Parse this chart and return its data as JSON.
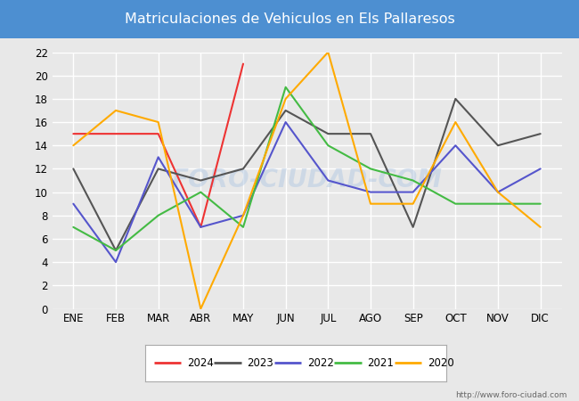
{
  "title": "Matriculaciones de Vehiculos en Els Pallaresos",
  "title_bg_color": "#4d8fd1",
  "title_text_color": "white",
  "months": [
    "ENE",
    "FEB",
    "MAR",
    "ABR",
    "MAY",
    "JUN",
    "JUL",
    "AGO",
    "SEP",
    "OCT",
    "NOV",
    "DIC"
  ],
  "series": {
    "2024": {
      "color": "#ee3333",
      "data": [
        15,
        15,
        15,
        7,
        21,
        null,
        null,
        null,
        null,
        null,
        null,
        null
      ]
    },
    "2023": {
      "color": "#555555",
      "data": [
        12,
        5,
        12,
        11,
        12,
        17,
        15,
        15,
        7,
        18,
        14,
        15
      ]
    },
    "2022": {
      "color": "#5555cc",
      "data": [
        9,
        4,
        13,
        7,
        8,
        16,
        11,
        10,
        10,
        14,
        10,
        12
      ]
    },
    "2021": {
      "color": "#44bb44",
      "data": [
        7,
        5,
        8,
        10,
        7,
        19,
        14,
        12,
        11,
        9,
        9,
        9
      ]
    },
    "2020": {
      "color": "#ffaa00",
      "data": [
        14,
        17,
        16,
        0,
        8,
        18,
        22,
        9,
        9,
        16,
        10,
        7
      ]
    }
  },
  "ylim": [
    0,
    22
  ],
  "yticks": [
    0,
    2,
    4,
    6,
    8,
    10,
    12,
    14,
    16,
    18,
    20,
    22
  ],
  "watermark": "foro-ciudad.com",
  "url": "http://www.foro-ciudad.com",
  "fig_bg_color": "#e8e8e8",
  "plot_bg_color": "#e8e8e8",
  "grid_color": "white",
  "linewidth": 1.5
}
